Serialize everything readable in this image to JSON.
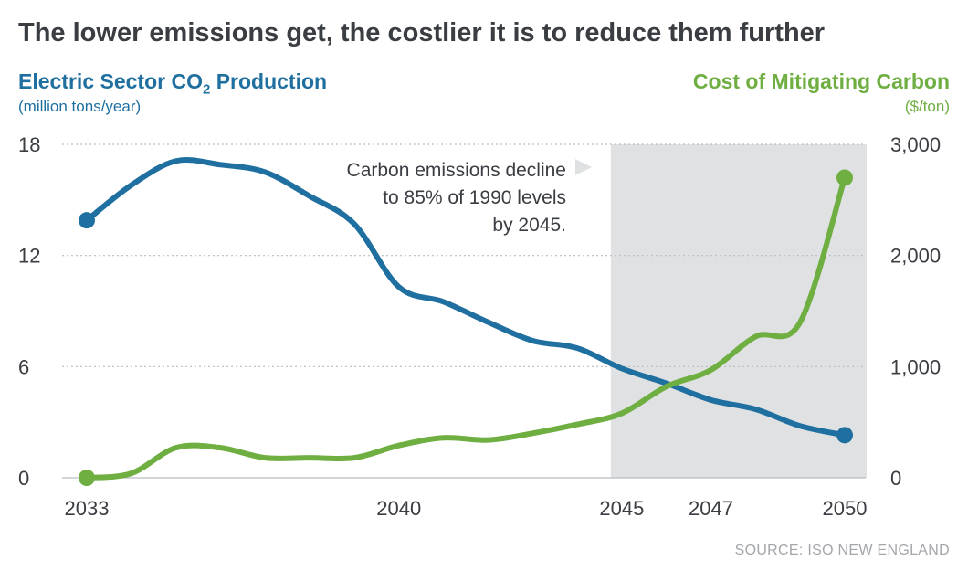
{
  "title": "The lower emissions get, the costlier it is to reduce them further",
  "left_axis": {
    "label_main": "Electric Sector CO",
    "label_sub": "2",
    "label_end": " Production",
    "unit": "(million tons/year)"
  },
  "right_axis": {
    "label": "Cost of Mitigating Carbon",
    "unit": "($/ton)"
  },
  "annotation": [
    "Carbon emissions decline",
    "to 85% of 1990 levels",
    "by 2045."
  ],
  "source": "SOURCE: ISO NEW ENGLAND",
  "colors": {
    "emissions": "#1f6fa0",
    "cost": "#6fae40",
    "shade": "#dfe1e3",
    "grid": "#b9bcc0"
  },
  "chart_data": {
    "type": "line",
    "x_ticks": [
      2033,
      2040,
      2045,
      2047,
      2050
    ],
    "shaded_range": [
      2045,
      2050
    ],
    "grid": true,
    "y_left": {
      "ticks": [
        0,
        6,
        12,
        18
      ],
      "tick_labels": [
        "0",
        "6",
        "12",
        "18"
      ],
      "range": [
        0,
        18
      ]
    },
    "y_right": {
      "ticks": [
        0,
        1000,
        2000,
        3000
      ],
      "tick_labels": [
        "0",
        "1,000",
        "2,000",
        "3,000"
      ],
      "range": [
        0,
        3000
      ]
    },
    "series": [
      {
        "axis": "left",
        "x": [
          2033,
          2034,
          2035,
          2036,
          2037,
          2038,
          2039,
          2040,
          2041,
          2042,
          2043,
          2044,
          2045,
          2046,
          2047,
          2048,
          2049,
          2050
        ],
        "values": [
          13.9,
          15.8,
          17.1,
          16.9,
          16.5,
          15.2,
          13.7,
          10.3,
          9.5,
          8.4,
          7.4,
          7.0,
          5.9,
          5.1,
          4.2,
          3.7,
          2.8,
          2.3
        ]
      },
      {
        "axis": "right",
        "x": [
          2033,
          2034,
          2035,
          2036,
          2037,
          2038,
          2039,
          2040,
          2041,
          2042,
          2043,
          2044,
          2045,
          2046,
          2047,
          2048,
          2049,
          2050
        ],
        "values": [
          0,
          40,
          270,
          270,
          180,
          180,
          180,
          290,
          360,
          340,
          400,
          480,
          580,
          820,
          970,
          1270,
          1400,
          2700
        ]
      }
    ]
  }
}
